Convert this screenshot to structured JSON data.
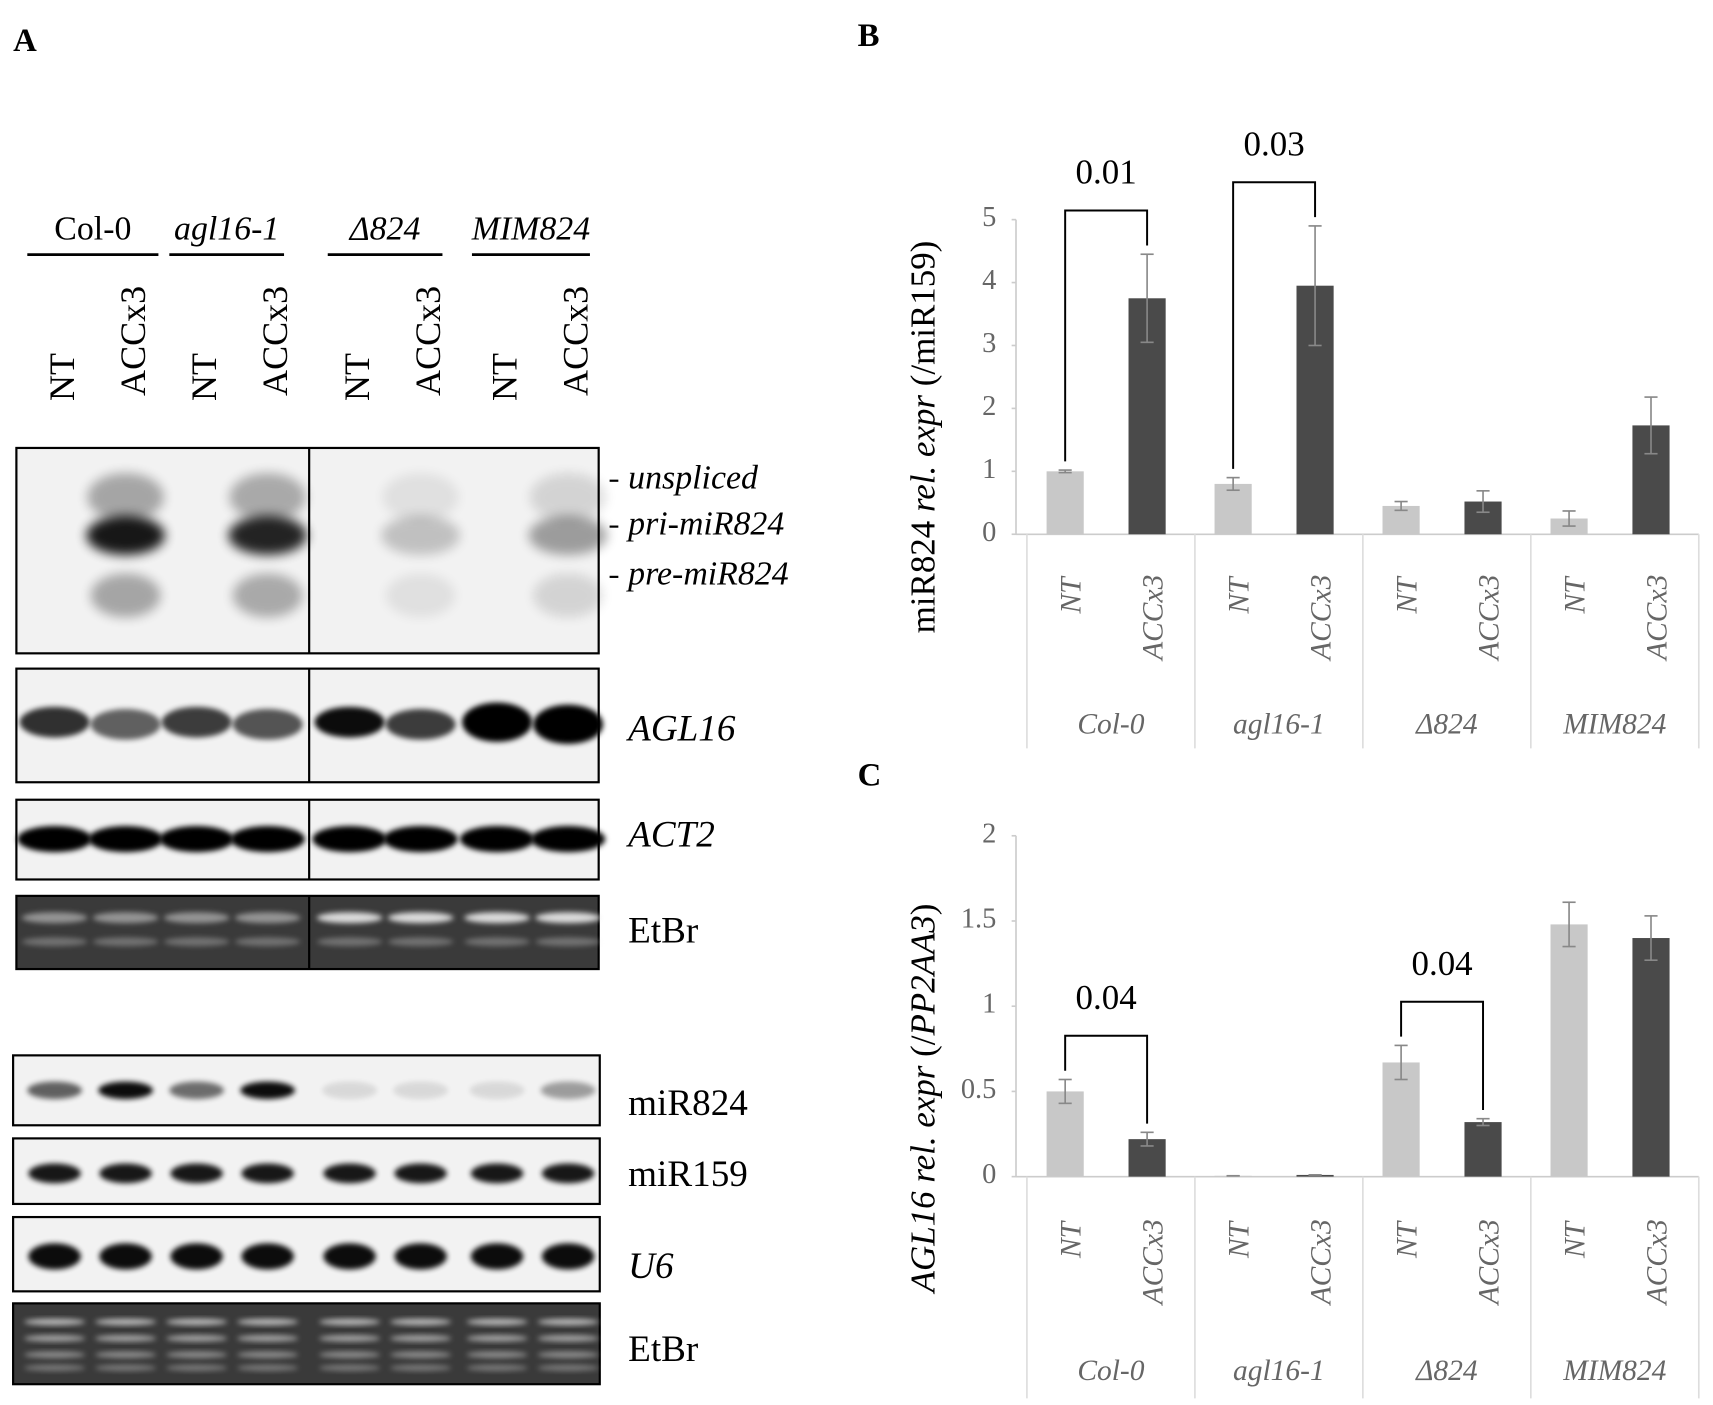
{
  "panel_a": {
    "label": "A",
    "genotypes": [
      {
        "text": "Col-0",
        "italic": false
      },
      {
        "text": "agl16-1",
        "italic": true
      },
      {
        "text": "Δ824",
        "italic": true
      },
      {
        "text": "MIM824",
        "italic": true
      }
    ],
    "lanes": [
      "NT",
      "ACCx3",
      "NT",
      "ACCx3",
      "NT",
      "ACCx3",
      "NT",
      "ACCx3"
    ],
    "blot_labels": [
      {
        "text": "unspliced",
        "italic": true
      },
      {
        "text": "pri-miR824",
        "italic": true
      },
      {
        "text": "pre-miR824",
        "italic": true
      },
      {
        "text": "AGL16",
        "italic": true
      },
      {
        "text": "ACT2",
        "italic": true
      },
      {
        "text": "EtBr",
        "italic": false
      },
      {
        "text": "miR824",
        "italic": false
      },
      {
        "text": "miR159",
        "italic": false
      },
      {
        "text": "U6",
        "italic": true
      },
      {
        "text": "EtBr",
        "italic": false
      }
    ]
  },
  "chart_data": [
    {
      "type": "bar",
      "panel_label": "B",
      "ylabel": [
        {
          "text": "miR824 ",
          "italic": false
        },
        {
          "text": "rel. expr",
          "italic": true
        },
        {
          "text": " (/miR159)",
          "italic": false
        }
      ],
      "categories": [
        "Col-0",
        "agl16-1",
        "Δ824",
        "MIM824"
      ],
      "series": [
        {
          "name": "NT",
          "color": "#c8c8c8",
          "values": [
            1.0,
            0.8,
            0.45,
            0.25
          ],
          "errors": [
            0.02,
            0.1,
            0.07,
            0.12
          ]
        },
        {
          "name": "ACCx3",
          "color": "#4a4a4a",
          "values": [
            3.75,
            3.95,
            0.52,
            1.73
          ],
          "errors": [
            0.7,
            0.95,
            0.17,
            0.45
          ]
        }
      ],
      "ylim": [
        0,
        5
      ],
      "yticks": [
        0,
        1,
        2,
        3,
        4,
        5
      ],
      "annotations": [
        {
          "text": "0.01",
          "category": "Col-0"
        },
        {
          "text": "0.03",
          "category": "agl16-1"
        }
      ]
    },
    {
      "type": "bar",
      "panel_label": "C",
      "ylabel": [
        {
          "text": "AGL16",
          "italic": true
        },
        {
          "text": "  rel. expr",
          "italic": true
        },
        {
          "text": " (/",
          "italic": false
        },
        {
          "text": "PP2AA3",
          "italic": true
        },
        {
          "text": ")",
          "italic": false
        }
      ],
      "categories": [
        "Col-0",
        "agl16-1",
        "Δ824",
        "MIM824"
      ],
      "series": [
        {
          "name": "NT",
          "color": "#c8c8c8",
          "values": [
            0.5,
            0.005,
            0.67,
            1.48
          ],
          "errors": [
            0.07,
            0.0,
            0.1,
            0.13
          ]
        },
        {
          "name": "ACCx3",
          "color": "#4a4a4a",
          "values": [
            0.22,
            0.01,
            0.32,
            1.4
          ],
          "errors": [
            0.04,
            0.0,
            0.02,
            0.13
          ]
        }
      ],
      "ylim": [
        0,
        2
      ],
      "yticks": [
        0,
        0.5,
        1,
        1.5,
        2
      ],
      "annotations": [
        {
          "text": "0.04",
          "category": "Col-0"
        },
        {
          "text": "0.04",
          "category": "Δ824"
        }
      ]
    }
  ]
}
